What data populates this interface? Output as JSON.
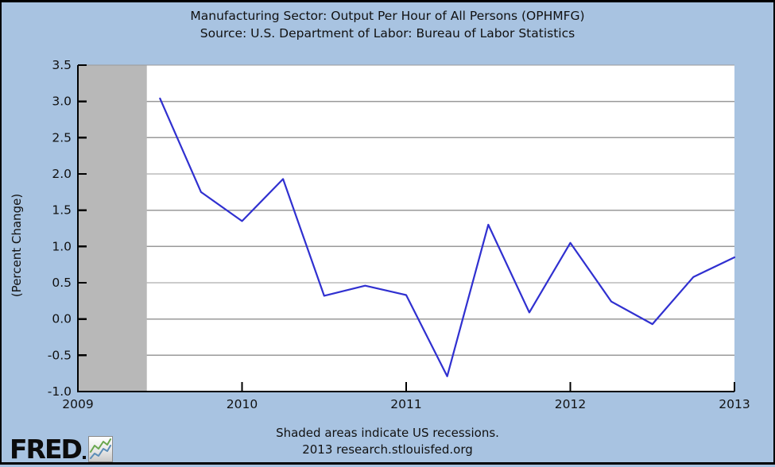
{
  "header": {
    "title": "Manufacturing Sector: Output Per Hour of All Persons (OPHMFG)",
    "source": "Source: U.S. Department of Labor: Bureau of Labor Statistics"
  },
  "chart_data": {
    "type": "line",
    "title": "Manufacturing Sector: Output Per Hour of All Persons (OPHMFG)",
    "subtitle": "Source: U.S. Department of Labor: Bureau of Labor Statistics",
    "xlabel": "",
    "ylabel": "(Percent Change)",
    "xlim": [
      2009,
      2013
    ],
    "ylim": [
      -1.0,
      3.5
    ],
    "grid": true,
    "legend_position": "none",
    "xticks": [
      "2009",
      "2010",
      "2011",
      "2012",
      "2013"
    ],
    "yticks": [
      "3.5",
      "3.0",
      "2.5",
      "2.0",
      "1.5",
      "1.0",
      "0.5",
      "0.0",
      "-0.5",
      "-1.0"
    ],
    "series": [
      {
        "name": "OPHMFG percent change",
        "x_quarters": [
          "2009-Q3",
          "2009-Q4",
          "2010-Q1",
          "2010-Q2",
          "2010-Q3",
          "2010-Q4",
          "2011-Q1",
          "2011-Q2",
          "2011-Q3",
          "2011-Q4",
          "2012-Q1",
          "2012-Q2",
          "2012-Q3",
          "2012-Q4",
          "2013-Q1"
        ],
        "values": [
          3.04,
          1.75,
          1.35,
          1.93,
          0.32,
          0.46,
          0.33,
          -0.79,
          1.3,
          0.09,
          1.05,
          0.24,
          -0.07,
          0.58,
          0.85
        ]
      }
    ],
    "recession_band": {
      "start_year": 2009.0,
      "end_year": 2009.42
    }
  },
  "footer": {
    "note": "Shaded areas indicate US recessions.",
    "credit": "2013 research.stlouisfed.org"
  },
  "logo": {
    "text": "FRED",
    "icon": "mini-line-chart-icon"
  },
  "colors": {
    "background": "#a8c3e1",
    "plot_background": "#ffffff",
    "recession_shading": "#b8b8b8",
    "gridline": "#9a9a9a",
    "axis": "#000000",
    "line": "#3030d0",
    "logo_line_green": "#69a74e",
    "logo_line_blue": "#5b8db8"
  }
}
